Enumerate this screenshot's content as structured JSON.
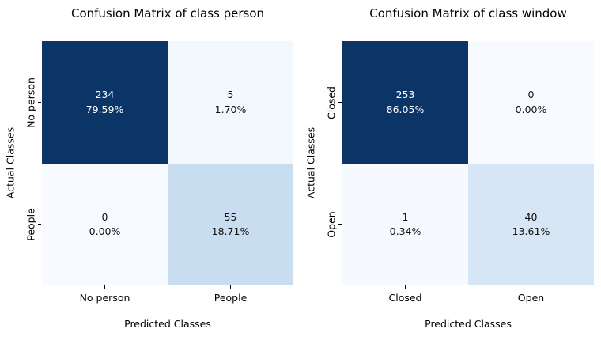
{
  "figure": {
    "background": "#ffffff",
    "colormap": "Blues",
    "dark_cell_color": "#0b3467",
    "text_on_dark": "#ffffff",
    "text_on_light": "#0f0f0f"
  },
  "charts": [
    {
      "title": "Confusion Matrix of class person",
      "xlabel": "Predicted Classes",
      "ylabel": "Actual Classes",
      "x_ticks": [
        "No person",
        "People"
      ],
      "y_ticks": [
        "No person",
        "People"
      ],
      "cells": [
        [
          {
            "count": "234",
            "pct": "79.59%",
            "bg": "#0b3467",
            "fg": "#ffffff"
          },
          {
            "count": "5",
            "pct": "1.70%",
            "bg": "#f3f8fe",
            "fg": "#0f0f0f"
          }
        ],
        [
          {
            "count": "0",
            "pct": "0.00%",
            "bg": "#f7fbff",
            "fg": "#0f0f0f"
          },
          {
            "count": "55",
            "pct": "18.71%",
            "bg": "#c8ddf0",
            "fg": "#0f0f0f"
          }
        ]
      ]
    },
    {
      "title": "Confusion Matrix of class window",
      "xlabel": "Predicted Classes",
      "ylabel": "Actual Classes",
      "x_ticks": [
        "Closed",
        "Open"
      ],
      "y_ticks": [
        "Closed",
        "Open"
      ],
      "cells": [
        [
          {
            "count": "253",
            "pct": "86.05%",
            "bg": "#0b3467",
            "fg": "#ffffff"
          },
          {
            "count": "0",
            "pct": "0.00%",
            "bg": "#f7fbff",
            "fg": "#0f0f0f"
          }
        ],
        [
          {
            "count": "1",
            "pct": "0.34%",
            "bg": "#f6fafe",
            "fg": "#0f0f0f"
          },
          {
            "count": "40",
            "pct": "13.61%",
            "bg": "#d7e6f4",
            "fg": "#0f0f0f"
          }
        ]
      ]
    }
  ],
  "chart_data": [
    {
      "type": "heatmap",
      "title": "Confusion Matrix of class person",
      "xlabel": "Predicted Classes",
      "ylabel": "Actual Classes",
      "x_categories": [
        "No person",
        "People"
      ],
      "y_categories": [
        "No person",
        "People"
      ],
      "values": [
        [
          234,
          5
        ],
        [
          0,
          55
        ]
      ],
      "percentages": [
        [
          "79.59%",
          "1.70%"
        ],
        [
          "0.00%",
          "18.71%"
        ]
      ],
      "colormap": "Blues",
      "grid": false,
      "legend": "none",
      "annotation_format": "count over percent"
    },
    {
      "type": "heatmap",
      "title": "Confusion Matrix of class window",
      "xlabel": "Predicted Classes",
      "ylabel": "Actual Classes",
      "x_categories": [
        "Closed",
        "Open"
      ],
      "y_categories": [
        "Closed",
        "Open"
      ],
      "values": [
        [
          253,
          0
        ],
        [
          1,
          40
        ]
      ],
      "percentages": [
        [
          "86.05%",
          "0.00%"
        ],
        [
          "0.34%",
          "13.61%"
        ]
      ],
      "colormap": "Blues",
      "grid": false,
      "legend": "none",
      "annotation_format": "count over percent"
    }
  ]
}
